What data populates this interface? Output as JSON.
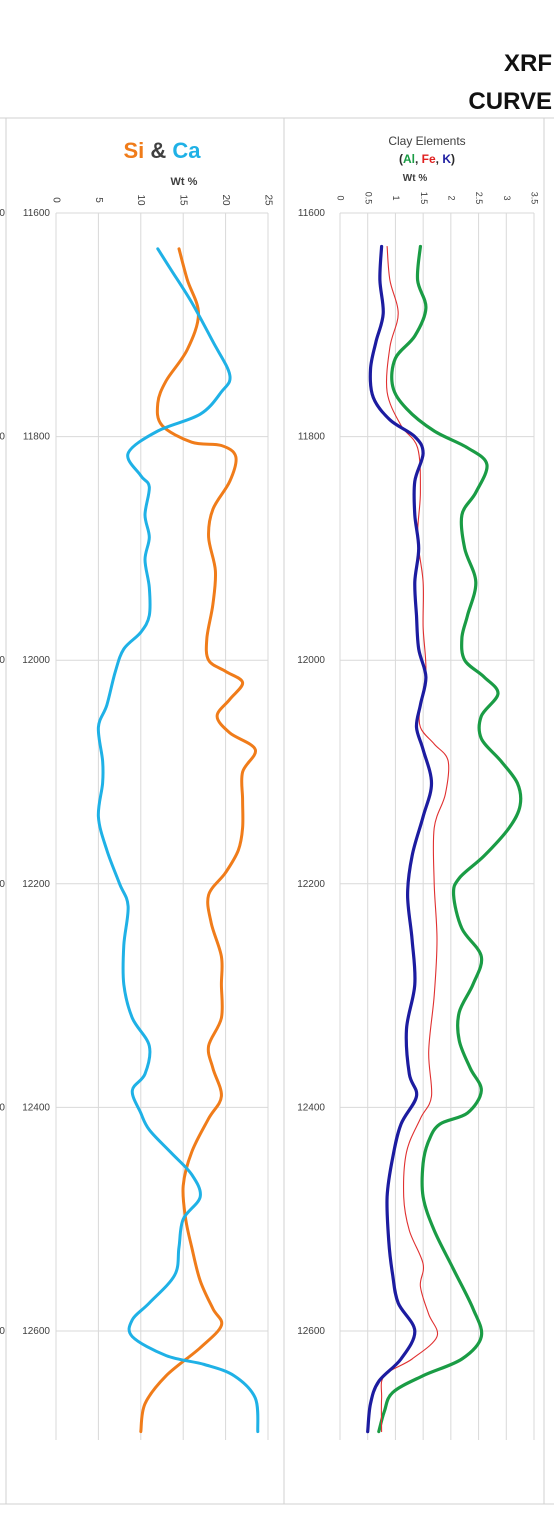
{
  "header": {
    "line1": "XRF",
    "line2": "CURVE"
  },
  "chart_data": [
    {
      "type": "line",
      "title_parts": [
        {
          "text": "Si",
          "color": "#f07c1a"
        },
        {
          "text": " & ",
          "color": "#404040"
        },
        {
          "text": "Ca",
          "color": "#1fb1e6"
        }
      ],
      "xlabel": "Wt %",
      "ylabel": "",
      "xlim": [
        0,
        25
      ],
      "ylim": [
        11600,
        12800
      ],
      "y_inverted": true,
      "x_ticks": [
        "0",
        "5",
        "10",
        "15",
        "20",
        "25"
      ],
      "x_tick_values": [
        0,
        5,
        10,
        15,
        20,
        25
      ],
      "y_ticks": [
        "11600",
        "11800",
        "12000",
        "12200",
        "12400",
        "12600"
      ],
      "y_tick_values": [
        11600,
        11800,
        12000,
        12200,
        12400,
        12600
      ],
      "grid": true,
      "series": [
        {
          "color": "#f07c1a",
          "points": [
            [
              14.5,
              11632
            ],
            [
              15.5,
              11660
            ],
            [
              16.8,
              11690
            ],
            [
              15.5,
              11722
            ],
            [
              13,
              11750
            ],
            [
              12,
              11770
            ],
            [
              12.5,
              11790
            ],
            [
              16,
              11805
            ],
            [
              19.5,
              11808
            ],
            [
              21.2,
              11818
            ],
            [
              20.5,
              11840
            ],
            [
              18.5,
              11865
            ],
            [
              18,
              11890
            ],
            [
              18.8,
              11920
            ],
            [
              18.5,
              11950
            ],
            [
              17.8,
              11980
            ],
            [
              18,
              12000
            ],
            [
              20,
              12010
            ],
            [
              22,
              12020
            ],
            [
              20.5,
              12035
            ],
            [
              19,
              12050
            ],
            [
              20.5,
              12065
            ],
            [
              23.5,
              12080
            ],
            [
              22,
              12100
            ],
            [
              22,
              12125
            ],
            [
              22,
              12150
            ],
            [
              21.5,
              12170
            ],
            [
              20,
              12190
            ],
            [
              18,
              12210
            ],
            [
              18.3,
              12235
            ],
            [
              19.5,
              12265
            ],
            [
              19.5,
              12290
            ],
            [
              19.5,
              12320
            ],
            [
              18,
              12345
            ],
            [
              18.5,
              12365
            ],
            [
              19.5,
              12390
            ],
            [
              18,
              12410
            ],
            [
              16,
              12440
            ],
            [
              15,
              12470
            ],
            [
              15.3,
              12500
            ],
            [
              16,
              12525
            ],
            [
              17,
              12555
            ],
            [
              18.5,
              12580
            ],
            [
              19.5,
              12595
            ],
            [
              17,
              12615
            ],
            [
              13,
              12640
            ],
            [
              10.5,
              12665
            ],
            [
              10,
              12690
            ]
          ]
        },
        {
          "color": "#1fb1e6",
          "points": [
            [
              12,
              11632
            ],
            [
              13.5,
              11650
            ],
            [
              16,
              11680
            ],
            [
              18.5,
              11715
            ],
            [
              20.5,
              11745
            ],
            [
              19.5,
              11760
            ],
            [
              17,
              11780
            ],
            [
              12,
              11795
            ],
            [
              8.5,
              11815
            ],
            [
              10,
              11835
            ],
            [
              11,
              11845
            ],
            [
              10.5,
              11870
            ],
            [
              11,
              11890
            ],
            [
              10.5,
              11910
            ],
            [
              11,
              11935
            ],
            [
              11,
              11960
            ],
            [
              10,
              11975
            ],
            [
              8,
              11990
            ],
            [
              7,
              12010
            ],
            [
              6,
              12040
            ],
            [
              5,
              12060
            ],
            [
              5.5,
              12090
            ],
            [
              5.5,
              12110
            ],
            [
              5,
              12140
            ],
            [
              6,
              12170
            ],
            [
              7.5,
              12200
            ],
            [
              8.5,
              12220
            ],
            [
              8,
              12255
            ],
            [
              8,
              12290
            ],
            [
              9,
              12320
            ],
            [
              11,
              12345
            ],
            [
              10.5,
              12370
            ],
            [
              9,
              12385
            ],
            [
              10,
              12405
            ],
            [
              11,
              12420
            ],
            [
              13.5,
              12440
            ],
            [
              16,
              12460
            ],
            [
              17,
              12480
            ],
            [
              15,
              12500
            ],
            [
              14.5,
              12525
            ],
            [
              14,
              12550
            ],
            [
              11,
              12575
            ],
            [
              9,
              12590
            ],
            [
              9,
              12605
            ],
            [
              13,
              12622
            ],
            [
              17.5,
              12630
            ],
            [
              21,
              12640
            ],
            [
              23.5,
              12660
            ],
            [
              23.8,
              12690
            ]
          ]
        }
      ]
    },
    {
      "type": "line",
      "title": "Clay Elements",
      "subtitle_parts": [
        {
          "text": "(",
          "color": "#2b2b2b"
        },
        {
          "text": "Al",
          "color": "#1a9c45"
        },
        {
          "text": ", ",
          "color": "#2b2b2b"
        },
        {
          "text": "Fe",
          "color": "#e02020"
        },
        {
          "text": ", ",
          "color": "#2b2b2b"
        },
        {
          "text": "K",
          "color": "#1c1ca0"
        },
        {
          "text": ")",
          "color": "#2b2b2b"
        }
      ],
      "xlabel": "Wt %",
      "ylabel": "",
      "xlim": [
        0,
        3.5
      ],
      "ylim": [
        11600,
        12800
      ],
      "y_inverted": true,
      "x_ticks": [
        "0",
        "0.5",
        "1",
        "1.5",
        "2",
        "2.5",
        "3",
        "3.5"
      ],
      "x_tick_values": [
        0,
        0.5,
        1,
        1.5,
        2,
        2.5,
        3,
        3.5
      ],
      "y_ticks": [
        "11600",
        "11800",
        "12000",
        "12200",
        "12400",
        "12600"
      ],
      "y_tick_values": [
        11600,
        11800,
        12000,
        12200,
        12400,
        12600
      ],
      "grid": true,
      "series": [
        {
          "color": "#1a9c45",
          "width": 3.2,
          "points": [
            [
              1.45,
              11630
            ],
            [
              1.4,
              11660
            ],
            [
              1.55,
              11685
            ],
            [
              1.35,
              11710
            ],
            [
              1,
              11730
            ],
            [
              0.95,
              11755
            ],
            [
              1.2,
              11775
            ],
            [
              1.7,
              11795
            ],
            [
              2.3,
              11810
            ],
            [
              2.65,
              11825
            ],
            [
              2.45,
              11850
            ],
            [
              2.2,
              11870
            ],
            [
              2.25,
              11900
            ],
            [
              2.45,
              11930
            ],
            [
              2.3,
              11960
            ],
            [
              2.2,
              11980
            ],
            [
              2.25,
              12000
            ],
            [
              2.6,
              12015
            ],
            [
              2.85,
              12030
            ],
            [
              2.55,
              12050
            ],
            [
              2.55,
              12070
            ],
            [
              2.9,
              12090
            ],
            [
              3.2,
              12110
            ],
            [
              3.25,
              12130
            ],
            [
              3.05,
              12150
            ],
            [
              2.6,
              12175
            ],
            [
              2.15,
              12195
            ],
            [
              2.05,
              12210
            ],
            [
              2.2,
              12240
            ],
            [
              2.55,
              12265
            ],
            [
              2.4,
              12290
            ],
            [
              2.15,
              12315
            ],
            [
              2.15,
              12340
            ],
            [
              2.35,
              12365
            ],
            [
              2.55,
              12385
            ],
            [
              2.3,
              12405
            ],
            [
              1.8,
              12415
            ],
            [
              1.6,
              12430
            ],
            [
              1.5,
              12450
            ],
            [
              1.5,
              12480
            ],
            [
              1.7,
              12510
            ],
            [
              2.05,
              12545
            ],
            [
              2.4,
              12580
            ],
            [
              2.55,
              12605
            ],
            [
              2.2,
              12625
            ],
            [
              1.5,
              12640
            ],
            [
              0.95,
              12655
            ],
            [
              0.8,
              12672
            ],
            [
              0.7,
              12690
            ]
          ]
        },
        {
          "color": "#e03030",
          "width": 1.1,
          "points": [
            [
              0.85,
              11630
            ],
            [
              0.9,
              11660
            ],
            [
              1.05,
              11690
            ],
            [
              0.9,
              11720
            ],
            [
              0.85,
              11760
            ],
            [
              1.1,
              11790
            ],
            [
              1.4,
              11810
            ],
            [
              1.45,
              11850
            ],
            [
              1.4,
              11890
            ],
            [
              1.5,
              11930
            ],
            [
              1.5,
              11970
            ],
            [
              1.55,
              12010
            ],
            [
              1.45,
              12040
            ],
            [
              1.45,
              12060
            ],
            [
              1.7,
              12075
            ],
            [
              1.95,
              12090
            ],
            [
              1.9,
              12120
            ],
            [
              1.7,
              12150
            ],
            [
              1.7,
              12200
            ],
            [
              1.75,
              12250
            ],
            [
              1.7,
              12300
            ],
            [
              1.6,
              12350
            ],
            [
              1.65,
              12390
            ],
            [
              1.45,
              12410
            ],
            [
              1.2,
              12440
            ],
            [
              1.15,
              12480
            ],
            [
              1.25,
              12510
            ],
            [
              1.5,
              12540
            ],
            [
              1.45,
              12560
            ],
            [
              1.6,
              12585
            ],
            [
              1.75,
              12605
            ],
            [
              1.3,
              12625
            ],
            [
              0.8,
              12640
            ],
            [
              0.75,
              12660
            ],
            [
              0.75,
              12690
            ]
          ]
        },
        {
          "color": "#1c1ca0",
          "width": 3.2,
          "points": [
            [
              0.75,
              11630
            ],
            [
              0.72,
              11660
            ],
            [
              0.78,
              11690
            ],
            [
              0.65,
              11715
            ],
            [
              0.55,
              11740
            ],
            [
              0.6,
              11765
            ],
            [
              0.9,
              11785
            ],
            [
              1.35,
              11800
            ],
            [
              1.5,
              11815
            ],
            [
              1.35,
              11840
            ],
            [
              1.35,
              11870
            ],
            [
              1.42,
              11900
            ],
            [
              1.35,
              11930
            ],
            [
              1.38,
              11960
            ],
            [
              1.42,
              11990
            ],
            [
              1.55,
              12015
            ],
            [
              1.45,
              12040
            ],
            [
              1.38,
              12060
            ],
            [
              1.5,
              12080
            ],
            [
              1.65,
              12110
            ],
            [
              1.5,
              12140
            ],
            [
              1.3,
              12175
            ],
            [
              1.22,
              12210
            ],
            [
              1.3,
              12250
            ],
            [
              1.35,
              12290
            ],
            [
              1.2,
              12330
            ],
            [
              1.25,
              12370
            ],
            [
              1.38,
              12390
            ],
            [
              1.1,
              12415
            ],
            [
              0.95,
              12445
            ],
            [
              0.85,
              12480
            ],
            [
              0.88,
              12520
            ],
            [
              0.95,
              12550
            ],
            [
              1.05,
              12575
            ],
            [
              1.35,
              12600
            ],
            [
              1.1,
              12625
            ],
            [
              0.7,
              12645
            ],
            [
              0.55,
              12665
            ],
            [
              0.5,
              12690
            ]
          ]
        }
      ]
    }
  ]
}
